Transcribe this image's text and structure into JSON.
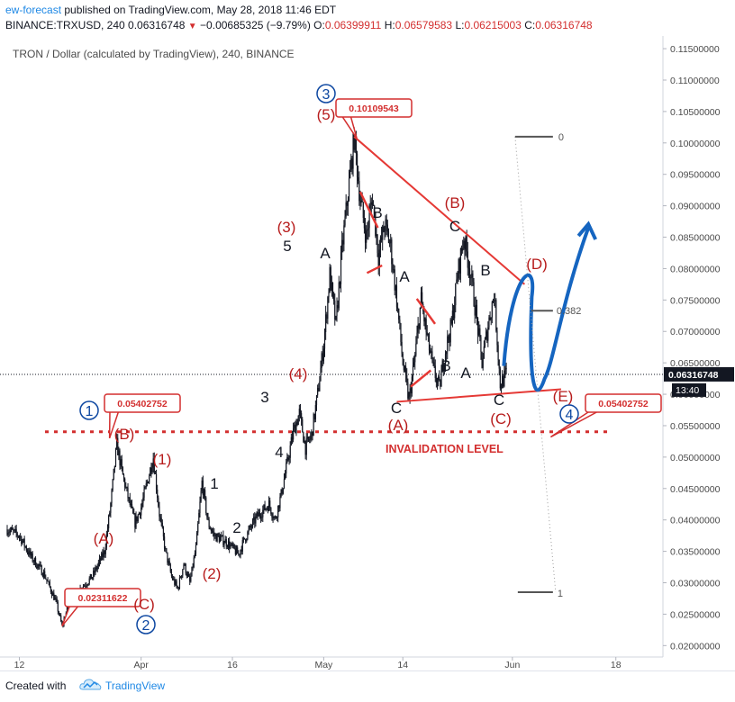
{
  "header": {
    "author": "ew-forecast",
    "published": "published on TradingView.com, May 28, 2018 11:46 EDT",
    "symbol": "BINANCE:TRXUSD, 240",
    "last": "0.06316748",
    "change": "−0.00685325 (−9.79%)",
    "o_label": "O:",
    "o": "0.06399911",
    "h_label": "H:",
    "h": "0.06579583",
    "l_label": "L:",
    "l": "0.06215003",
    "c_label": "C:",
    "c": "0.06316748"
  },
  "chart_data": {
    "type": "candlestick",
    "title": "TRON / Dollar (calculated by TradingView), 240, BINANCE",
    "y_ticks": [
      "0.11500000",
      "0.11000000",
      "0.10500000",
      "0.10000000",
      "0.09500000",
      "0.09000000",
      "0.08500000",
      "0.08000000",
      "0.07500000",
      "0.07000000",
      "0.06500000",
      "0.06000000",
      "0.05500000",
      "0.05000000",
      "0.04500000",
      "0.04000000",
      "0.03500000",
      "0.03000000",
      "0.02500000",
      "0.02000000"
    ],
    "y_tick_values": [
      0.115,
      0.11,
      0.105,
      0.1,
      0.095,
      0.09,
      0.085,
      0.08,
      0.075,
      0.07,
      0.065,
      0.06,
      0.055,
      0.05,
      0.045,
      0.04,
      0.035,
      0.03,
      0.025,
      0.02
    ],
    "ylim": [
      0.0189,
      0.1163
    ],
    "x_ticks": [
      "12",
      "Apr",
      "16",
      "May",
      "14",
      "Jun",
      "18"
    ],
    "x_tick_dates": [
      "2018-03-12",
      "2018-04-01",
      "2018-04-16",
      "2018-05-01",
      "2018-05-14",
      "2018-06-01",
      "2018-06-18"
    ],
    "xlim": [
      "2018-03-10",
      "2018-06-21"
    ],
    "last_price_label": "0.06316748",
    "last_price": 0.06316748,
    "countdown": "13:40",
    "price_path": [
      [
        "2018-03-10",
        0.0385
      ],
      [
        "2018-03-12",
        0.0375
      ],
      [
        "2018-03-14",
        0.034
      ],
      [
        "2018-03-16",
        0.0315
      ],
      [
        "2018-03-18",
        0.027
      ],
      [
        "2018-03-19",
        0.0231
      ],
      [
        "2018-03-20",
        0.0262
      ],
      [
        "2018-03-22",
        0.029
      ],
      [
        "2018-03-24",
        0.031
      ],
      [
        "2018-03-26",
        0.035
      ],
      [
        "2018-03-27",
        0.0425
      ],
      [
        "2018-03-28",
        0.052
      ],
      [
        "2018-03-29",
        0.047
      ],
      [
        "2018-03-30",
        0.043
      ],
      [
        "2018-03-31",
        0.0395
      ],
      [
        "2018-04-01",
        0.042
      ],
      [
        "2018-04-02",
        0.046
      ],
      [
        "2018-04-03",
        0.05
      ],
      [
        "2018-04-04",
        0.041
      ],
      [
        "2018-04-05",
        0.035
      ],
      [
        "2018-04-06",
        0.031
      ],
      [
        "2018-04-07",
        0.029
      ],
      [
        "2018-04-08",
        0.033
      ],
      [
        "2018-04-09",
        0.03
      ],
      [
        "2018-04-10",
        0.0355
      ],
      [
        "2018-04-11",
        0.046
      ],
      [
        "2018-04-12",
        0.0395
      ],
      [
        "2018-04-13",
        0.0375
      ],
      [
        "2018-04-15",
        0.0365
      ],
      [
        "2018-04-17",
        0.0345
      ],
      [
        "2018-04-18",
        0.037
      ],
      [
        "2018-04-20",
        0.0405
      ],
      [
        "2018-04-22",
        0.0425
      ],
      [
        "2018-04-23",
        0.04
      ],
      [
        "2018-04-24",
        0.044
      ],
      [
        "2018-04-25",
        0.049
      ],
      [
        "2018-04-26",
        0.054
      ],
      [
        "2018-04-27",
        0.057
      ],
      [
        "2018-04-28",
        0.0515
      ],
      [
        "2018-04-29",
        0.0535
      ],
      [
        "2018-04-30",
        0.06
      ],
      [
        "2018-05-01",
        0.068
      ],
      [
        "2018-05-02",
        0.079
      ],
      [
        "2018-05-03",
        0.071
      ],
      [
        "2018-05-04",
        0.083
      ],
      [
        "2018-05-05",
        0.092
      ],
      [
        "2018-05-06",
        0.101
      ],
      [
        "2018-05-07",
        0.091
      ],
      [
        "2018-05-08",
        0.085
      ],
      [
        "2018-05-09",
        0.0915
      ],
      [
        "2018-05-10",
        0.082
      ],
      [
        "2018-05-11",
        0.087
      ],
      [
        "2018-05-12",
        0.0835
      ],
      [
        "2018-05-13",
        0.075
      ],
      [
        "2018-05-14",
        0.065
      ],
      [
        "2018-05-15",
        0.059
      ],
      [
        "2018-05-16",
        0.066
      ],
      [
        "2018-05-17",
        0.075
      ],
      [
        "2018-05-18",
        0.069
      ],
      [
        "2018-05-19",
        0.064
      ],
      [
        "2018-05-20",
        0.061
      ],
      [
        "2018-05-21",
        0.067
      ],
      [
        "2018-05-22",
        0.071
      ],
      [
        "2018-05-23",
        0.079
      ],
      [
        "2018-05-24",
        0.085
      ],
      [
        "2018-05-25",
        0.08
      ],
      [
        "2018-05-26",
        0.073
      ],
      [
        "2018-05-27",
        0.065
      ],
      [
        "2018-05-28",
        0.071
      ],
      [
        "2018-05-29",
        0.076
      ],
      [
        "2018-05-30",
        0.0615
      ],
      [
        "2018-05-31",
        0.0632
      ]
    ],
    "labels": {
      "w1": "1",
      "w2": "2",
      "w3": "3",
      "w4": "4",
      "A_top": "(A)",
      "B_top": "(B)",
      "C_top": "(C)",
      "A_par": "(A)",
      "B_par": "(B)",
      "C_par": "(C)",
      "D_par": "(D)",
      "E_par": "(E)",
      "p1": "(1)",
      "p2": "(2)",
      "p3": "(3)",
      "p4": "(4)",
      "p5": "(5)",
      "s1": "1",
      "s2": "2",
      "s3": "3",
      "s4": "4",
      "s5": "5",
      "sA1": "A",
      "sB1": "B",
      "sC1": "C",
      "sA2": "A",
      "sB2": "B",
      "sC2": "C",
      "sA3": "A",
      "sB3": "B",
      "sC3": "C"
    },
    "callouts": {
      "high": "0.10109543",
      "inval_left": "0.05402752",
      "inval_right": "0.05402752",
      "low": "0.02311622"
    },
    "invalidation_label": "INVALIDATION LEVEL",
    "fib": {
      "zero": "0",
      "mid": "0.382",
      "one": "1"
    },
    "colors": {
      "candle": "#131722",
      "wave_red": "#b71c1c",
      "line_red": "#e53935",
      "callout_red": "#d32f2f",
      "blue": "#0d47a1",
      "projection": "#1565c0",
      "axis_text": "#4a4a4a"
    }
  },
  "footer": {
    "created_with": "Created with",
    "brand": "TradingView",
    "logo_icon": "tradingview-cloud-icon"
  }
}
